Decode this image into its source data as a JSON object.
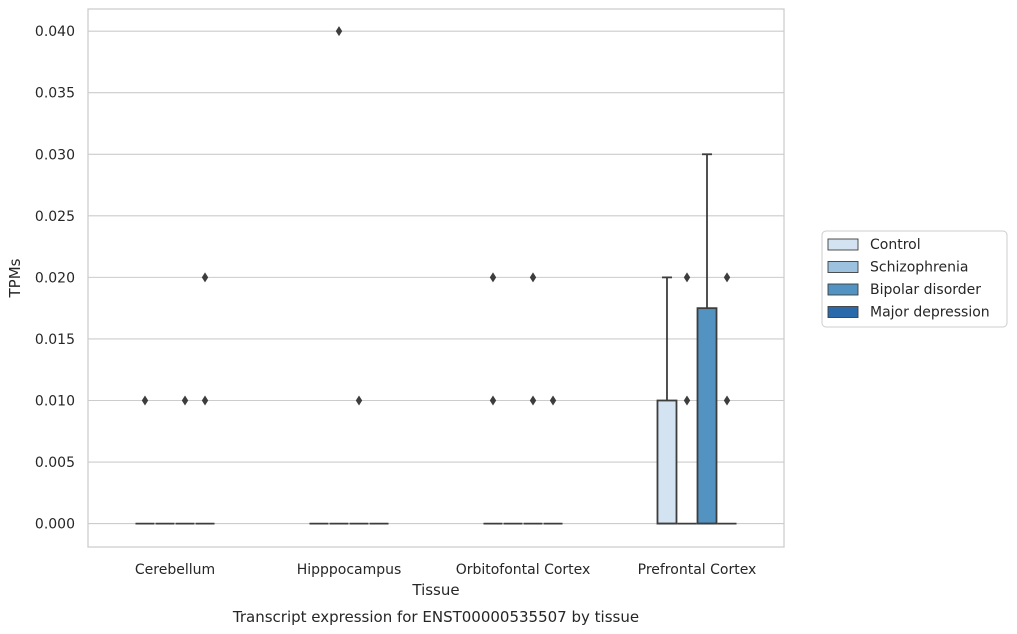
{
  "chart_data": {
    "type": "box",
    "title": "",
    "caption": "Transcript expression for ENST00000535507 by tissue",
    "xlabel": "Tissue",
    "ylabel": "TPMs",
    "ylim": [
      -0.0019,
      0.0418
    ],
    "yticks": [
      0.0,
      0.005,
      0.01,
      0.015,
      0.02,
      0.025,
      0.03,
      0.035,
      0.04
    ],
    "ytick_labels": [
      "0.000",
      "0.005",
      "0.010",
      "0.015",
      "0.020",
      "0.025",
      "0.030",
      "0.035",
      "0.040"
    ],
    "grid": "horizontal",
    "legend_placement": "center-right outside",
    "categories": [
      "Cerebellum",
      "Hipppocampus",
      "Orbitofontal Cortex",
      "Prefrontal Cortex"
    ],
    "series": [
      {
        "name": "Control",
        "color": "#d4e3f2",
        "boxes": [
          {
            "q1": 0,
            "median": 0,
            "q3": 0,
            "whisker_low": 0,
            "whisker_high": 0,
            "outliers": [
              0.01
            ]
          },
          {
            "q1": 0,
            "median": 0,
            "q3": 0,
            "whisker_low": 0,
            "whisker_high": 0,
            "outliers": []
          },
          {
            "q1": 0,
            "median": 0,
            "q3": 0,
            "whisker_low": 0,
            "whisker_high": 0,
            "outliers": [
              0.01,
              0.02
            ]
          },
          {
            "q1": 0,
            "median": 0,
            "q3": 0.01,
            "whisker_low": 0,
            "whisker_high": 0.02,
            "outliers": []
          }
        ]
      },
      {
        "name": "Schizophrenia",
        "color": "#9cc2df",
        "boxes": [
          {
            "q1": 0,
            "median": 0,
            "q3": 0,
            "whisker_low": 0,
            "whisker_high": 0,
            "outliers": []
          },
          {
            "q1": 0,
            "median": 0,
            "q3": 0,
            "whisker_low": 0,
            "whisker_high": 0,
            "outliers": [
              0.04
            ]
          },
          {
            "q1": 0,
            "median": 0,
            "q3": 0,
            "whisker_low": 0,
            "whisker_high": 0,
            "outliers": []
          },
          {
            "q1": 0,
            "median": 0,
            "q3": 0,
            "whisker_low": 0,
            "whisker_high": 0,
            "outliers": [
              0.01,
              0.02
            ]
          }
        ]
      },
      {
        "name": "Bipolar disorder",
        "color": "#5293c2",
        "boxes": [
          {
            "q1": 0,
            "median": 0,
            "q3": 0,
            "whisker_low": 0,
            "whisker_high": 0,
            "outliers": [
              0.01
            ]
          },
          {
            "q1": 0,
            "median": 0,
            "q3": 0,
            "whisker_low": 0,
            "whisker_high": 0,
            "outliers": [
              0.01
            ]
          },
          {
            "q1": 0,
            "median": 0,
            "q3": 0,
            "whisker_low": 0,
            "whisker_high": 0,
            "outliers": [
              0.01,
              0.02
            ]
          },
          {
            "q1": 0,
            "median": 0,
            "q3": 0.0175,
            "whisker_low": 0,
            "whisker_high": 0.03,
            "outliers": []
          }
        ]
      },
      {
        "name": "Major depression",
        "color": "#2a6aaa",
        "boxes": [
          {
            "q1": 0,
            "median": 0,
            "q3": 0,
            "whisker_low": 0,
            "whisker_high": 0,
            "outliers": [
              0.01,
              0.02
            ]
          },
          {
            "q1": 0,
            "median": 0,
            "q3": 0,
            "whisker_low": 0,
            "whisker_high": 0,
            "outliers": []
          },
          {
            "q1": 0,
            "median": 0,
            "q3": 0,
            "whisker_low": 0,
            "whisker_high": 0,
            "outliers": [
              0.01
            ]
          },
          {
            "q1": 0,
            "median": 0,
            "q3": 0,
            "whisker_low": 0,
            "whisker_high": 0,
            "outliers": [
              0.01,
              0.02
            ]
          }
        ]
      }
    ]
  }
}
